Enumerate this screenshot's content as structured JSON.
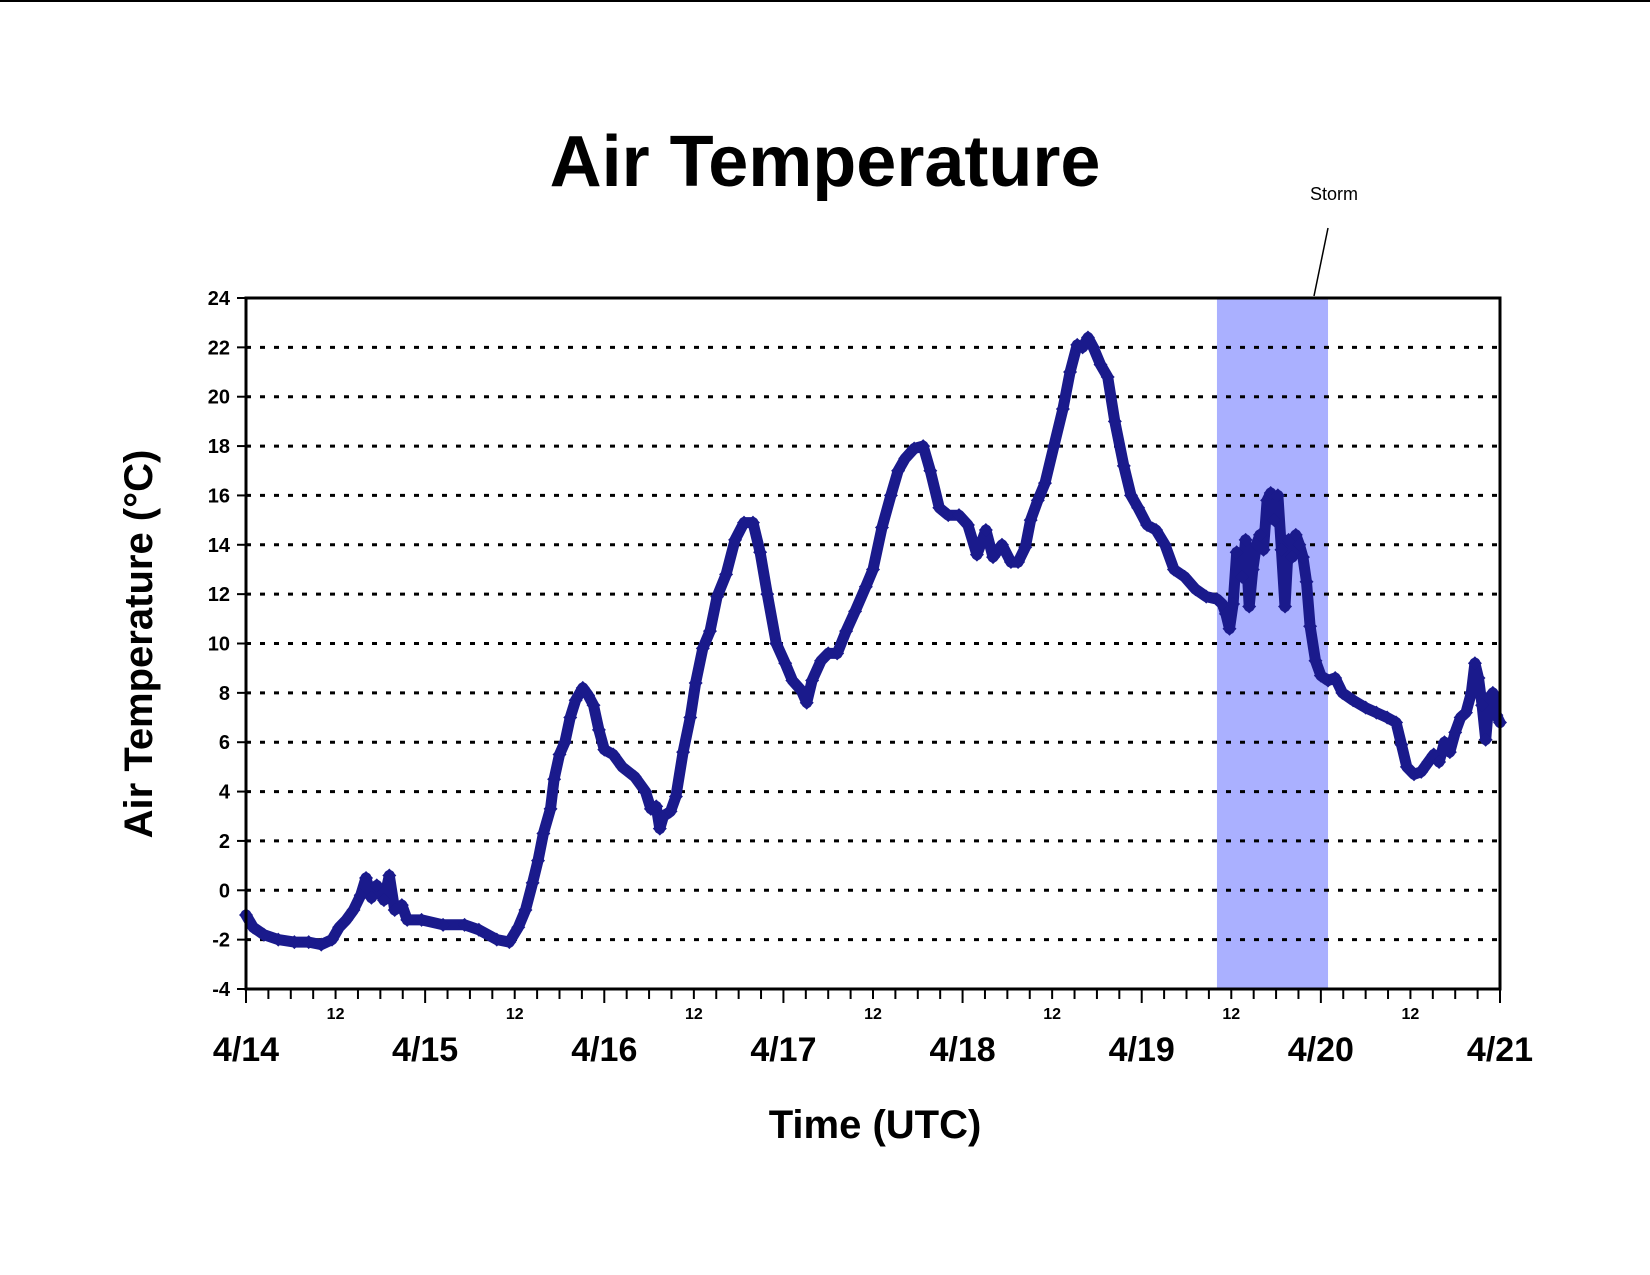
{
  "chart_data": {
    "type": "scatter",
    "title": "Air Temperature",
    "xlabel": "Time (UTC)",
    "ylabel": "Air Temperature (°C)",
    "x_unit": "days since 4/14 00:00 UTC",
    "xlim": [
      0,
      7
    ],
    "ylim": [
      -4,
      24
    ],
    "y_ticks": [
      -4,
      -2,
      0,
      2,
      4,
      6,
      8,
      10,
      12,
      14,
      16,
      18,
      20,
      22,
      24
    ],
    "major_x_ticks": [
      {
        "x": 0,
        "label": "4/14"
      },
      {
        "x": 1,
        "label": "4/15"
      },
      {
        "x": 2,
        "label": "4/16"
      },
      {
        "x": 3,
        "label": "4/17"
      },
      {
        "x": 4,
        "label": "4/18"
      },
      {
        "x": 5,
        "label": "4/19"
      },
      {
        "x": 6,
        "label": "4/20"
      },
      {
        "x": 7,
        "label": "4/21"
      }
    ],
    "midday_ticks": [
      {
        "x": 0.5,
        "label": "12"
      },
      {
        "x": 1.5,
        "label": "12"
      },
      {
        "x": 2.5,
        "label": "12"
      },
      {
        "x": 3.5,
        "label": "12"
      },
      {
        "x": 4.5,
        "label": "12"
      },
      {
        "x": 5.5,
        "label": "12"
      },
      {
        "x": 6.5,
        "label": "12"
      }
    ],
    "grid": "horizontal dotted",
    "series_color": "#1a1a8c",
    "annotation": {
      "text": "Storm",
      "x_start": 5.42,
      "x_end": 6.04,
      "color": "#aab0ff"
    },
    "series": [
      {
        "name": "Air temperature",
        "points": [
          [
            0.0,
            -1.0
          ],
          [
            0.04,
            -1.5
          ],
          [
            0.1,
            -1.8
          ],
          [
            0.18,
            -2.0
          ],
          [
            0.27,
            -2.1
          ],
          [
            0.35,
            -2.1
          ],
          [
            0.42,
            -2.2
          ],
          [
            0.48,
            -2.0
          ],
          [
            0.52,
            -1.5
          ],
          [
            0.56,
            -1.2
          ],
          [
            0.6,
            -0.8
          ],
          [
            0.64,
            -0.2
          ],
          [
            0.67,
            0.5
          ],
          [
            0.7,
            -0.3
          ],
          [
            0.73,
            0.2
          ],
          [
            0.77,
            -0.4
          ],
          [
            0.8,
            0.6
          ],
          [
            0.83,
            -0.8
          ],
          [
            0.87,
            -0.6
          ],
          [
            0.9,
            -1.2
          ],
          [
            0.98,
            -1.2
          ],
          [
            1.1,
            -1.4
          ],
          [
            1.22,
            -1.4
          ],
          [
            1.3,
            -1.6
          ],
          [
            1.4,
            -2.0
          ],
          [
            1.47,
            -2.1
          ],
          [
            1.52,
            -1.5
          ],
          [
            1.56,
            -0.8
          ],
          [
            1.6,
            0.3
          ],
          [
            1.63,
            1.2
          ],
          [
            1.66,
            2.3
          ],
          [
            1.7,
            3.3
          ],
          [
            1.72,
            4.5
          ],
          [
            1.75,
            5.5
          ],
          [
            1.78,
            6.0
          ],
          [
            1.81,
            7.0
          ],
          [
            1.84,
            7.7
          ],
          [
            1.88,
            8.2
          ],
          [
            1.91,
            7.9
          ],
          [
            1.94,
            7.5
          ],
          [
            1.97,
            6.5
          ],
          [
            2.0,
            5.7
          ],
          [
            2.05,
            5.5
          ],
          [
            2.1,
            5.0
          ],
          [
            2.17,
            4.6
          ],
          [
            2.23,
            4.0
          ],
          [
            2.26,
            3.3
          ],
          [
            2.29,
            3.4
          ],
          [
            2.31,
            2.5
          ],
          [
            2.33,
            3.0
          ],
          [
            2.37,
            3.2
          ],
          [
            2.4,
            3.8
          ],
          [
            2.44,
            5.6
          ],
          [
            2.48,
            7.0
          ],
          [
            2.51,
            8.4
          ],
          [
            2.55,
            9.8
          ],
          [
            2.59,
            10.5
          ],
          [
            2.63,
            11.9
          ],
          [
            2.68,
            12.8
          ],
          [
            2.73,
            14.2
          ],
          [
            2.78,
            14.9
          ],
          [
            2.83,
            14.9
          ],
          [
            2.87,
            13.7
          ],
          [
            2.91,
            12.0
          ],
          [
            2.96,
            10.0
          ],
          [
            3.01,
            9.2
          ],
          [
            3.05,
            8.5
          ],
          [
            3.1,
            8.1
          ],
          [
            3.13,
            7.6
          ],
          [
            3.16,
            8.5
          ],
          [
            3.21,
            9.3
          ],
          [
            3.25,
            9.6
          ],
          [
            3.3,
            9.6
          ],
          [
            3.35,
            10.5
          ],
          [
            3.4,
            11.3
          ],
          [
            3.46,
            12.3
          ],
          [
            3.5,
            13.0
          ],
          [
            3.55,
            14.7
          ],
          [
            3.6,
            16.0
          ],
          [
            3.64,
            17.0
          ],
          [
            3.68,
            17.5
          ],
          [
            3.73,
            17.9
          ],
          [
            3.78,
            18.0
          ],
          [
            3.82,
            17.0
          ],
          [
            3.87,
            15.5
          ],
          [
            3.92,
            15.2
          ],
          [
            3.98,
            15.2
          ],
          [
            4.03,
            14.8
          ],
          [
            4.08,
            13.6
          ],
          [
            4.13,
            14.6
          ],
          [
            4.17,
            13.5
          ],
          [
            4.22,
            14.0
          ],
          [
            4.27,
            13.3
          ],
          [
            4.31,
            13.3
          ],
          [
            4.35,
            13.9
          ],
          [
            4.38,
            15.0
          ],
          [
            4.42,
            15.8
          ],
          [
            4.46,
            16.5
          ],
          [
            4.51,
            18.0
          ],
          [
            4.56,
            19.5
          ],
          [
            4.6,
            21.0
          ],
          [
            4.64,
            22.1
          ],
          [
            4.67,
            22.0
          ],
          [
            4.7,
            22.4
          ],
          [
            4.73,
            22.0
          ],
          [
            4.77,
            21.3
          ],
          [
            4.81,
            20.8
          ],
          [
            4.85,
            19.0
          ],
          [
            4.9,
            17.2
          ],
          [
            4.94,
            16.0
          ],
          [
            4.98,
            15.5
          ],
          [
            5.03,
            14.8
          ],
          [
            5.08,
            14.6
          ],
          [
            5.13,
            14.0
          ],
          [
            5.18,
            13.0
          ],
          [
            5.24,
            12.7
          ],
          [
            5.3,
            12.2
          ],
          [
            5.36,
            11.9
          ],
          [
            5.42,
            11.8
          ],
          [
            5.45,
            11.6
          ],
          [
            5.47,
            11.2
          ],
          [
            5.49,
            10.6
          ],
          [
            5.51,
            11.6
          ],
          [
            5.53,
            13.7
          ],
          [
            5.56,
            12.7
          ],
          [
            5.58,
            14.2
          ],
          [
            5.6,
            11.5
          ],
          [
            5.62,
            13.0
          ],
          [
            5.64,
            14.0
          ],
          [
            5.66,
            14.4
          ],
          [
            5.68,
            13.8
          ],
          [
            5.7,
            15.8
          ],
          [
            5.72,
            16.1
          ],
          [
            5.74,
            15.0
          ],
          [
            5.76,
            16.0
          ],
          [
            5.78,
            13.8
          ],
          [
            5.8,
            11.5
          ],
          [
            5.82,
            14.2
          ],
          [
            5.84,
            13.5
          ],
          [
            5.86,
            14.4
          ],
          [
            5.88,
            14.0
          ],
          [
            5.9,
            13.5
          ],
          [
            5.92,
            12.5
          ],
          [
            5.94,
            10.7
          ],
          [
            5.97,
            9.3
          ],
          [
            6.0,
            8.7
          ],
          [
            6.04,
            8.5
          ],
          [
            6.08,
            8.6
          ],
          [
            6.12,
            8.0
          ],
          [
            6.18,
            7.7
          ],
          [
            6.25,
            7.4
          ],
          [
            6.31,
            7.2
          ],
          [
            6.37,
            7.0
          ],
          [
            6.42,
            6.8
          ],
          [
            6.45,
            5.9
          ],
          [
            6.48,
            5.0
          ],
          [
            6.52,
            4.7
          ],
          [
            6.56,
            4.8
          ],
          [
            6.6,
            5.2
          ],
          [
            6.63,
            5.5
          ],
          [
            6.66,
            5.2
          ],
          [
            6.69,
            6.0
          ],
          [
            6.72,
            5.6
          ],
          [
            6.75,
            6.4
          ],
          [
            6.78,
            7.0
          ],
          [
            6.81,
            7.2
          ],
          [
            6.84,
            8.0
          ],
          [
            6.86,
            9.2
          ],
          [
            6.88,
            8.6
          ],
          [
            6.9,
            7.5
          ],
          [
            6.92,
            6.1
          ],
          [
            6.94,
            7.8
          ],
          [
            6.96,
            8.0
          ],
          [
            6.98,
            7.1
          ],
          [
            7.0,
            6.8
          ]
        ]
      }
    ]
  }
}
